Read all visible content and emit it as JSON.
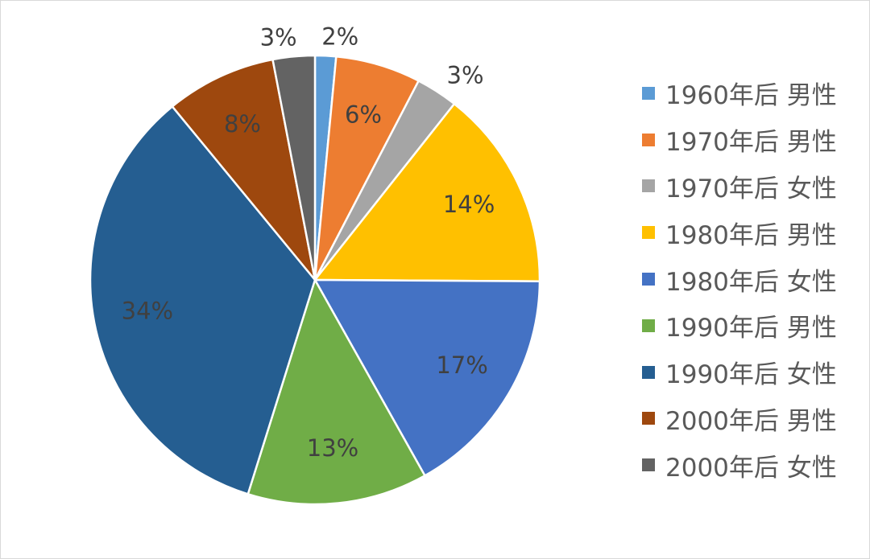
{
  "chart_data": {
    "type": "pie",
    "title": "",
    "legend_position": "right",
    "slices": [
      {
        "name": "1960年后 男性",
        "value": 1.5,
        "label": "2%",
        "color": "#5B9BD5"
      },
      {
        "name": "1970年后 男性",
        "value": 6.1,
        "label": "6%",
        "color": "#ED7D31"
      },
      {
        "name": "1970年后 女性",
        "value": 3.0,
        "label": "3%",
        "color": "#A5A5A5"
      },
      {
        "name": "1980年后 男性",
        "value": 14.4,
        "label": "14%",
        "color": "#FFC000"
      },
      {
        "name": "1980年后 女性",
        "value": 16.7,
        "label": "17%",
        "color": "#4472C4"
      },
      {
        "name": "1990年后 男性",
        "value": 12.9,
        "label": "13%",
        "color": "#70AD47"
      },
      {
        "name": "1990年后 女性",
        "value": 34.1,
        "label": "34%",
        "color": "#255E91"
      },
      {
        "name": "2000年后 男性",
        "value": 7.9,
        "label": "8%",
        "color": "#9E480E"
      },
      {
        "name": "2000年后 女性",
        "value": 3.0,
        "label": "3%",
        "color": "#636363"
      }
    ]
  }
}
